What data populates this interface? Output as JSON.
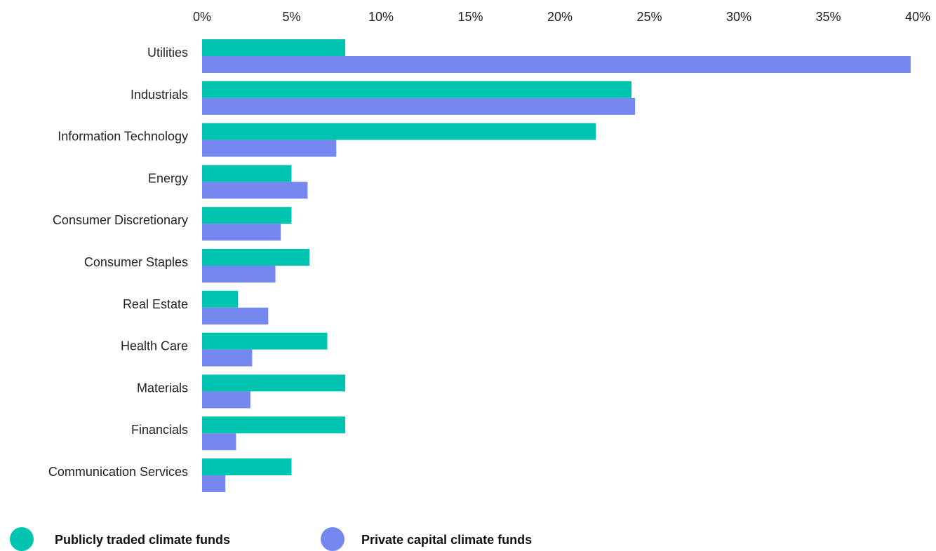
{
  "chart_data": {
    "type": "bar",
    "orientation": "horizontal",
    "categories": [
      "Utilities",
      "Industrials",
      "Information Technology",
      "Energy",
      "Consumer Discretionary",
      "Consumer Staples",
      "Real Estate",
      "Health Care",
      "Materials",
      "Financials",
      "Communication Services"
    ],
    "series": [
      {
        "name": "Publicly traded climate funds",
        "color": "#00c4b0",
        "values": [
          8,
          24,
          22,
          5,
          5,
          6,
          2,
          7,
          8,
          8,
          5
        ]
      },
      {
        "name": "Private capital climate funds",
        "color": "#7488ef",
        "values": [
          39.6,
          24.2,
          7.5,
          5.9,
          4.4,
          4.1,
          3.7,
          2.8,
          2.7,
          1.9,
          1.3
        ]
      }
    ],
    "xlim": [
      0,
      40
    ],
    "x_ticks": [
      "0%",
      "5%",
      "10%",
      "15%",
      "20%",
      "25%",
      "30%",
      "35%",
      "40%"
    ],
    "x_tick_values": [
      0,
      5,
      10,
      15,
      20,
      25,
      30,
      35,
      40
    ],
    "x_axis_position": "top",
    "grid": false,
    "legend_position": "bottom-left",
    "title": "",
    "xlabel": "",
    "ylabel": ""
  }
}
